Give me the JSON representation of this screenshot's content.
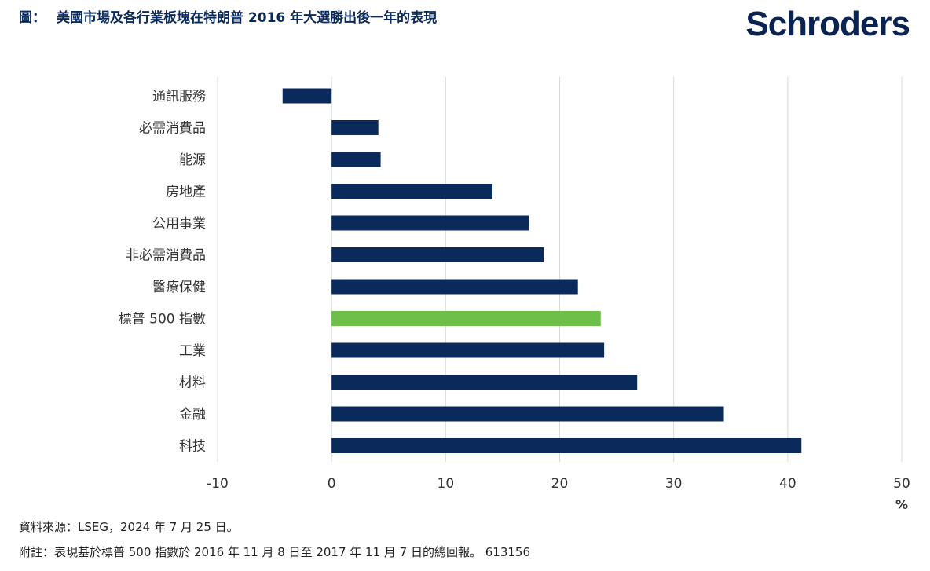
{
  "header": {
    "prefix": "圖：",
    "title": "美國市場及各行業板塊在特朗普 2016 年大選勝出後一年的表現",
    "logo_text": "Schroders"
  },
  "footer": {
    "source": "資料來源：LSEG，2024 年 7 月 25 日。",
    "note": "附註：表現基於標普 500 指數於 2016 年 11 月 8 日至 2017 年 11 月 7 日的總回報。 613156"
  },
  "chart_data": {
    "type": "bar",
    "orientation": "horizontal",
    "categories": [
      "通訊服務",
      "必需消費品",
      "能源",
      "房地產",
      "公用事業",
      "非必需消費品",
      "醫療保健",
      "標普 500 指數",
      "工業",
      "材料",
      "金融",
      "科技"
    ],
    "values": [
      -4.3,
      4.1,
      4.3,
      14.1,
      17.3,
      18.6,
      21.6,
      23.6,
      23.9,
      26.8,
      34.4,
      41.2
    ],
    "highlight_category": "標普 500 指數",
    "xlim": [
      -10,
      50
    ],
    "xticks": [
      "-10",
      "0",
      "10",
      "20",
      "30",
      "40",
      "50"
    ],
    "xunit": "%",
    "grid": true,
    "colors": {
      "bar": "#0b2a5c",
      "highlight": "#6cc04a",
      "grid": "#d9d9d9"
    }
  }
}
